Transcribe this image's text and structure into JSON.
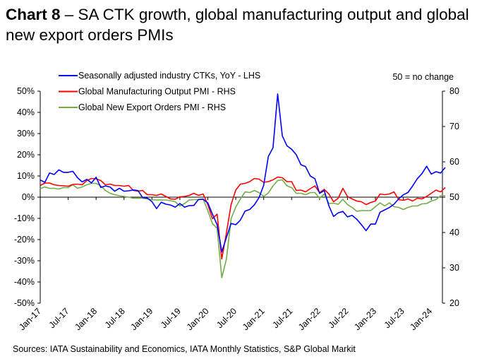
{
  "title": {
    "bold": "Chart 8",
    "rest": " – SA CTK growth, global manufacturing output and global new export orders PMIs"
  },
  "sources": "Sources: IATA Sustainability and Economics, IATA Monthly Statistics, S&P Global Markit",
  "chart_data": {
    "type": "line",
    "annotation": "50 = no change",
    "x_start": "Jan-17",
    "x_end": "Apr-24",
    "x_frequency": "monthly",
    "x_tick_labels": [
      "Jan-17",
      "Jul-17",
      "Jan-18",
      "Jul-18",
      "Jan-19",
      "Jul-19",
      "Jan-20",
      "Jul-20",
      "Jan-21",
      "Jul-21",
      "Jan-22",
      "Jul-22",
      "Jan-23",
      "Jul-23",
      "Jan-24"
    ],
    "y_left": {
      "range": [
        -50,
        50
      ],
      "ticks": [
        "50%",
        "40%",
        "30%",
        "20%",
        "10%",
        "0%",
        "-10%",
        "-20%",
        "-30%",
        "-40%",
        "-50%"
      ]
    },
    "y_right": {
      "range": [
        20,
        80
      ],
      "ticks": [
        "80",
        "70",
        "60",
        "50",
        "40",
        "30",
        "20"
      ]
    },
    "legend_placement": "top-left",
    "grid": false,
    "series": [
      {
        "name": "Seasonally adjusted industry CTKs, YoY - LHS",
        "axis": "left",
        "color": "#0000ff",
        "values": [
          8.1,
          7,
          11.4,
          10.7,
          12.9,
          11.7,
          11.7,
          12.2,
          9.2,
          7.2,
          8.4,
          6.7,
          9.4,
          4.6,
          5.3,
          4.8,
          2.8,
          4.2,
          2.8,
          3,
          3.4,
          3.1,
          -0.2,
          -0.4,
          -2.1,
          -5.4,
          -2.4,
          -3.3,
          -3.7,
          -4.7,
          -3,
          -4.7,
          -4,
          -3.9,
          -1.1,
          -1,
          -2.7,
          -8,
          -13,
          -25.8,
          -19,
          -12.4,
          -13,
          -10.8,
          -6.6,
          -5.8,
          -3.6,
          -0.2,
          5.6,
          19.2,
          23.3,
          48.7,
          28.9,
          24.2,
          22.6,
          20,
          15.3,
          14.4,
          10,
          8.7,
          1.8,
          3.1,
          -4.1,
          -9.1,
          -7.4,
          -6.7,
          -9.3,
          -8.6,
          -10.4,
          -13,
          -15.8,
          -12.7,
          -12.7,
          -7.1,
          -6,
          -4.9,
          -3.3,
          -0.8,
          1.1,
          2.2,
          5.3,
          8.7,
          11.1,
          14.6,
          10.9,
          12,
          11.4,
          14
        ]
      },
      {
        "name": "Global Manufacturing Output PMI - RHS",
        "axis": "right",
        "color": "#ff0000",
        "values": [
          53.3,
          54,
          54,
          53.5,
          53.3,
          53.2,
          53.1,
          53.6,
          53.7,
          53.5,
          54.7,
          55.3,
          55.2,
          54.7,
          53.5,
          53.7,
          53.3,
          53.3,
          53.1,
          53.3,
          51.9,
          51.7,
          51.9,
          50.7,
          50.7,
          50.5,
          50.9,
          50.2,
          49.5,
          49.4,
          50.1,
          50.2,
          50.5,
          51.1,
          50.5,
          50.9,
          47.9,
          43.9,
          45.2,
          32.5,
          39.9,
          47.9,
          52,
          53.7,
          53.9,
          54.4,
          55.3,
          55.1,
          54.2,
          54.4,
          54.9,
          55.7,
          55.5,
          54.4,
          54.4,
          51.9,
          52,
          51.5,
          52.4,
          53.2,
          51.3,
          52.2,
          50.9,
          48.7,
          49.7,
          52.5,
          50.2,
          49.5,
          48.9,
          48.7,
          47.9,
          48.5,
          48.9,
          50.9,
          50.7,
          50.9,
          51.5,
          49.3,
          49.1,
          49.5,
          48.9,
          49.7,
          49.5,
          50.2,
          51.1,
          52,
          51.5,
          52.7
        ]
      },
      {
        "name": "Global New Export Orders PMI - RHS",
        "axis": "right",
        "color": "#70ad47",
        "values": [
          52.4,
          52.9,
          52.5,
          52.5,
          52.3,
          52.7,
          52.7,
          53.5,
          52.5,
          52.9,
          53.5,
          53.9,
          53.9,
          53.2,
          51.9,
          51.1,
          50.7,
          50.4,
          50.2,
          50,
          49.7,
          49.7,
          49.7,
          49.5,
          49.3,
          49.2,
          49.2,
          49.2,
          49,
          48.7,
          47.5,
          48.2,
          49.2,
          49.3,
          49.3,
          49.5,
          46.2,
          42.5,
          41.2,
          27.2,
          32.5,
          43.9,
          47.2,
          49.5,
          51.5,
          51.3,
          51.9,
          51.3,
          50.2,
          51.2,
          53.2,
          54.7,
          54.9,
          53.2,
          52.7,
          51.1,
          51.1,
          50.7,
          51.3,
          51.3,
          49.7,
          50.9,
          48.2,
          48.3,
          48,
          49.4,
          47.9,
          47.1,
          46,
          46.2,
          46.2,
          46.2,
          47.3,
          48.4,
          47.5,
          48.4,
          47.3,
          47.1,
          46.5,
          47.1,
          47.5,
          47.5,
          48.1,
          48.2,
          48.9,
          49.3,
          50.4,
          50.4
        ]
      }
    ]
  }
}
